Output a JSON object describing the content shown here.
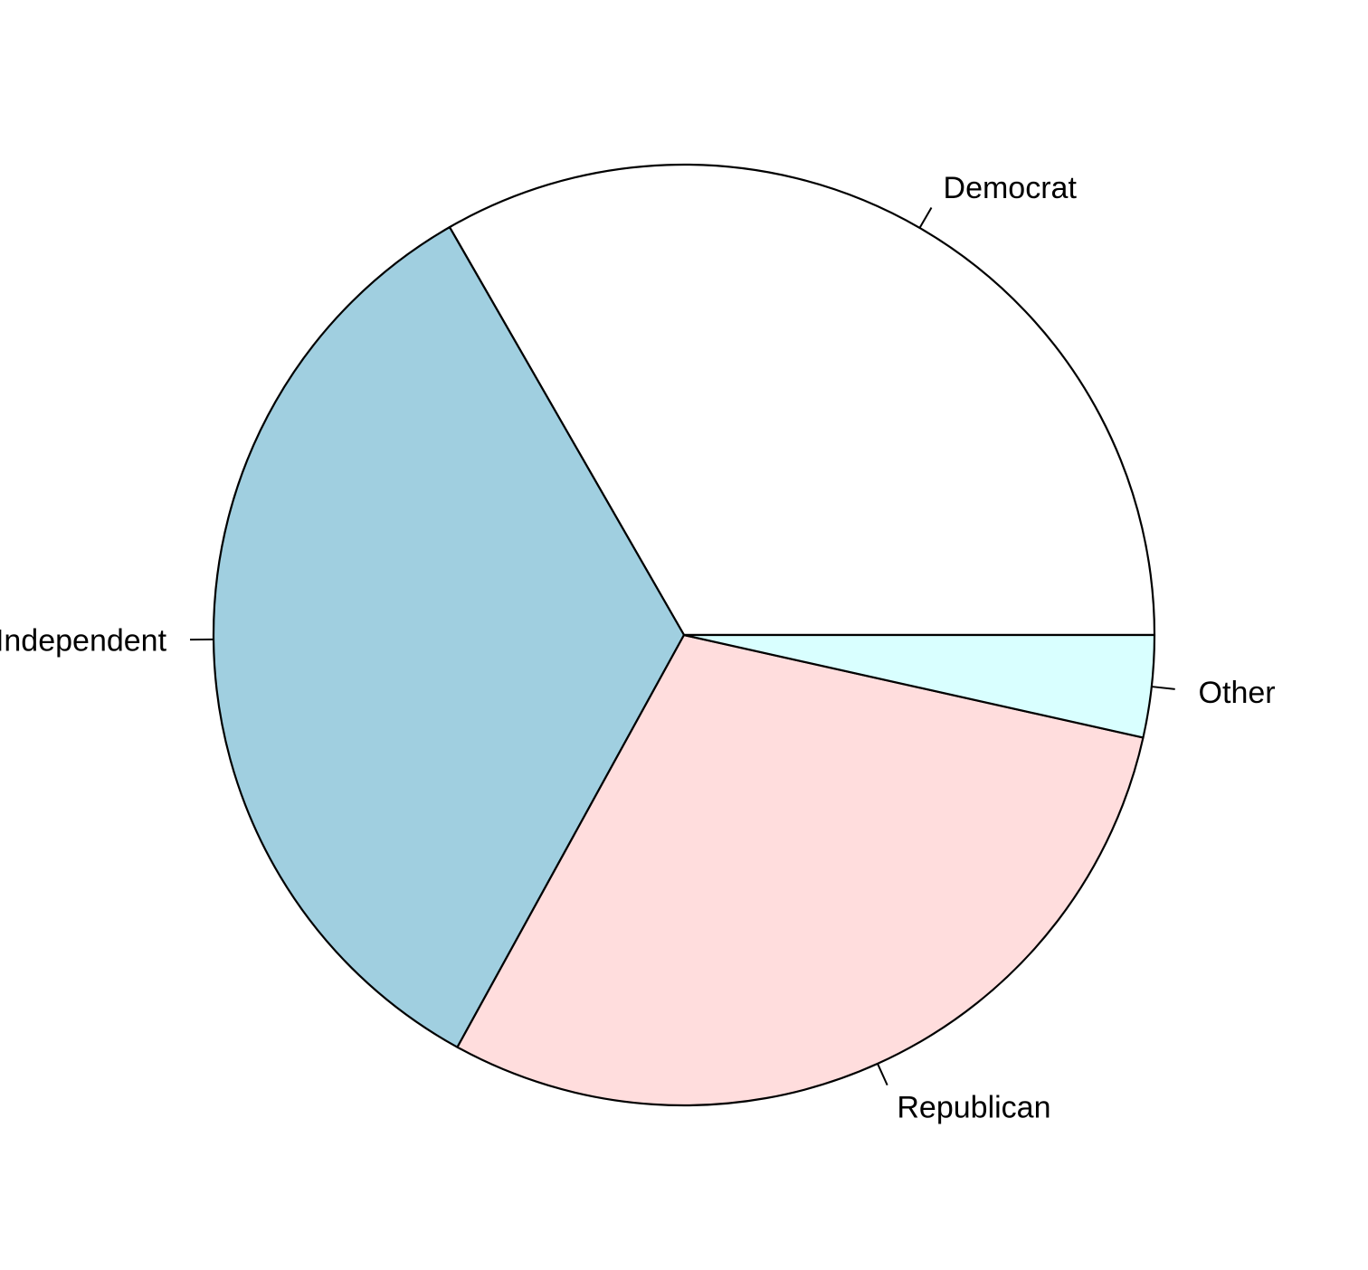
{
  "chart_data": {
    "type": "pie",
    "title": "",
    "start_angle_deg": 0,
    "direction": "counterclockwise",
    "slices": [
      {
        "label": "Democrat",
        "value": 33.3,
        "color": "#ffffff"
      },
      {
        "label": "Independent",
        "value": 33.7,
        "color": "#a0cfe0"
      },
      {
        "label": "Republican",
        "value": 29.5,
        "color": "#ffdddd"
      },
      {
        "label": "Other",
        "value": 3.5,
        "color": "#d9ffff"
      }
    ]
  }
}
